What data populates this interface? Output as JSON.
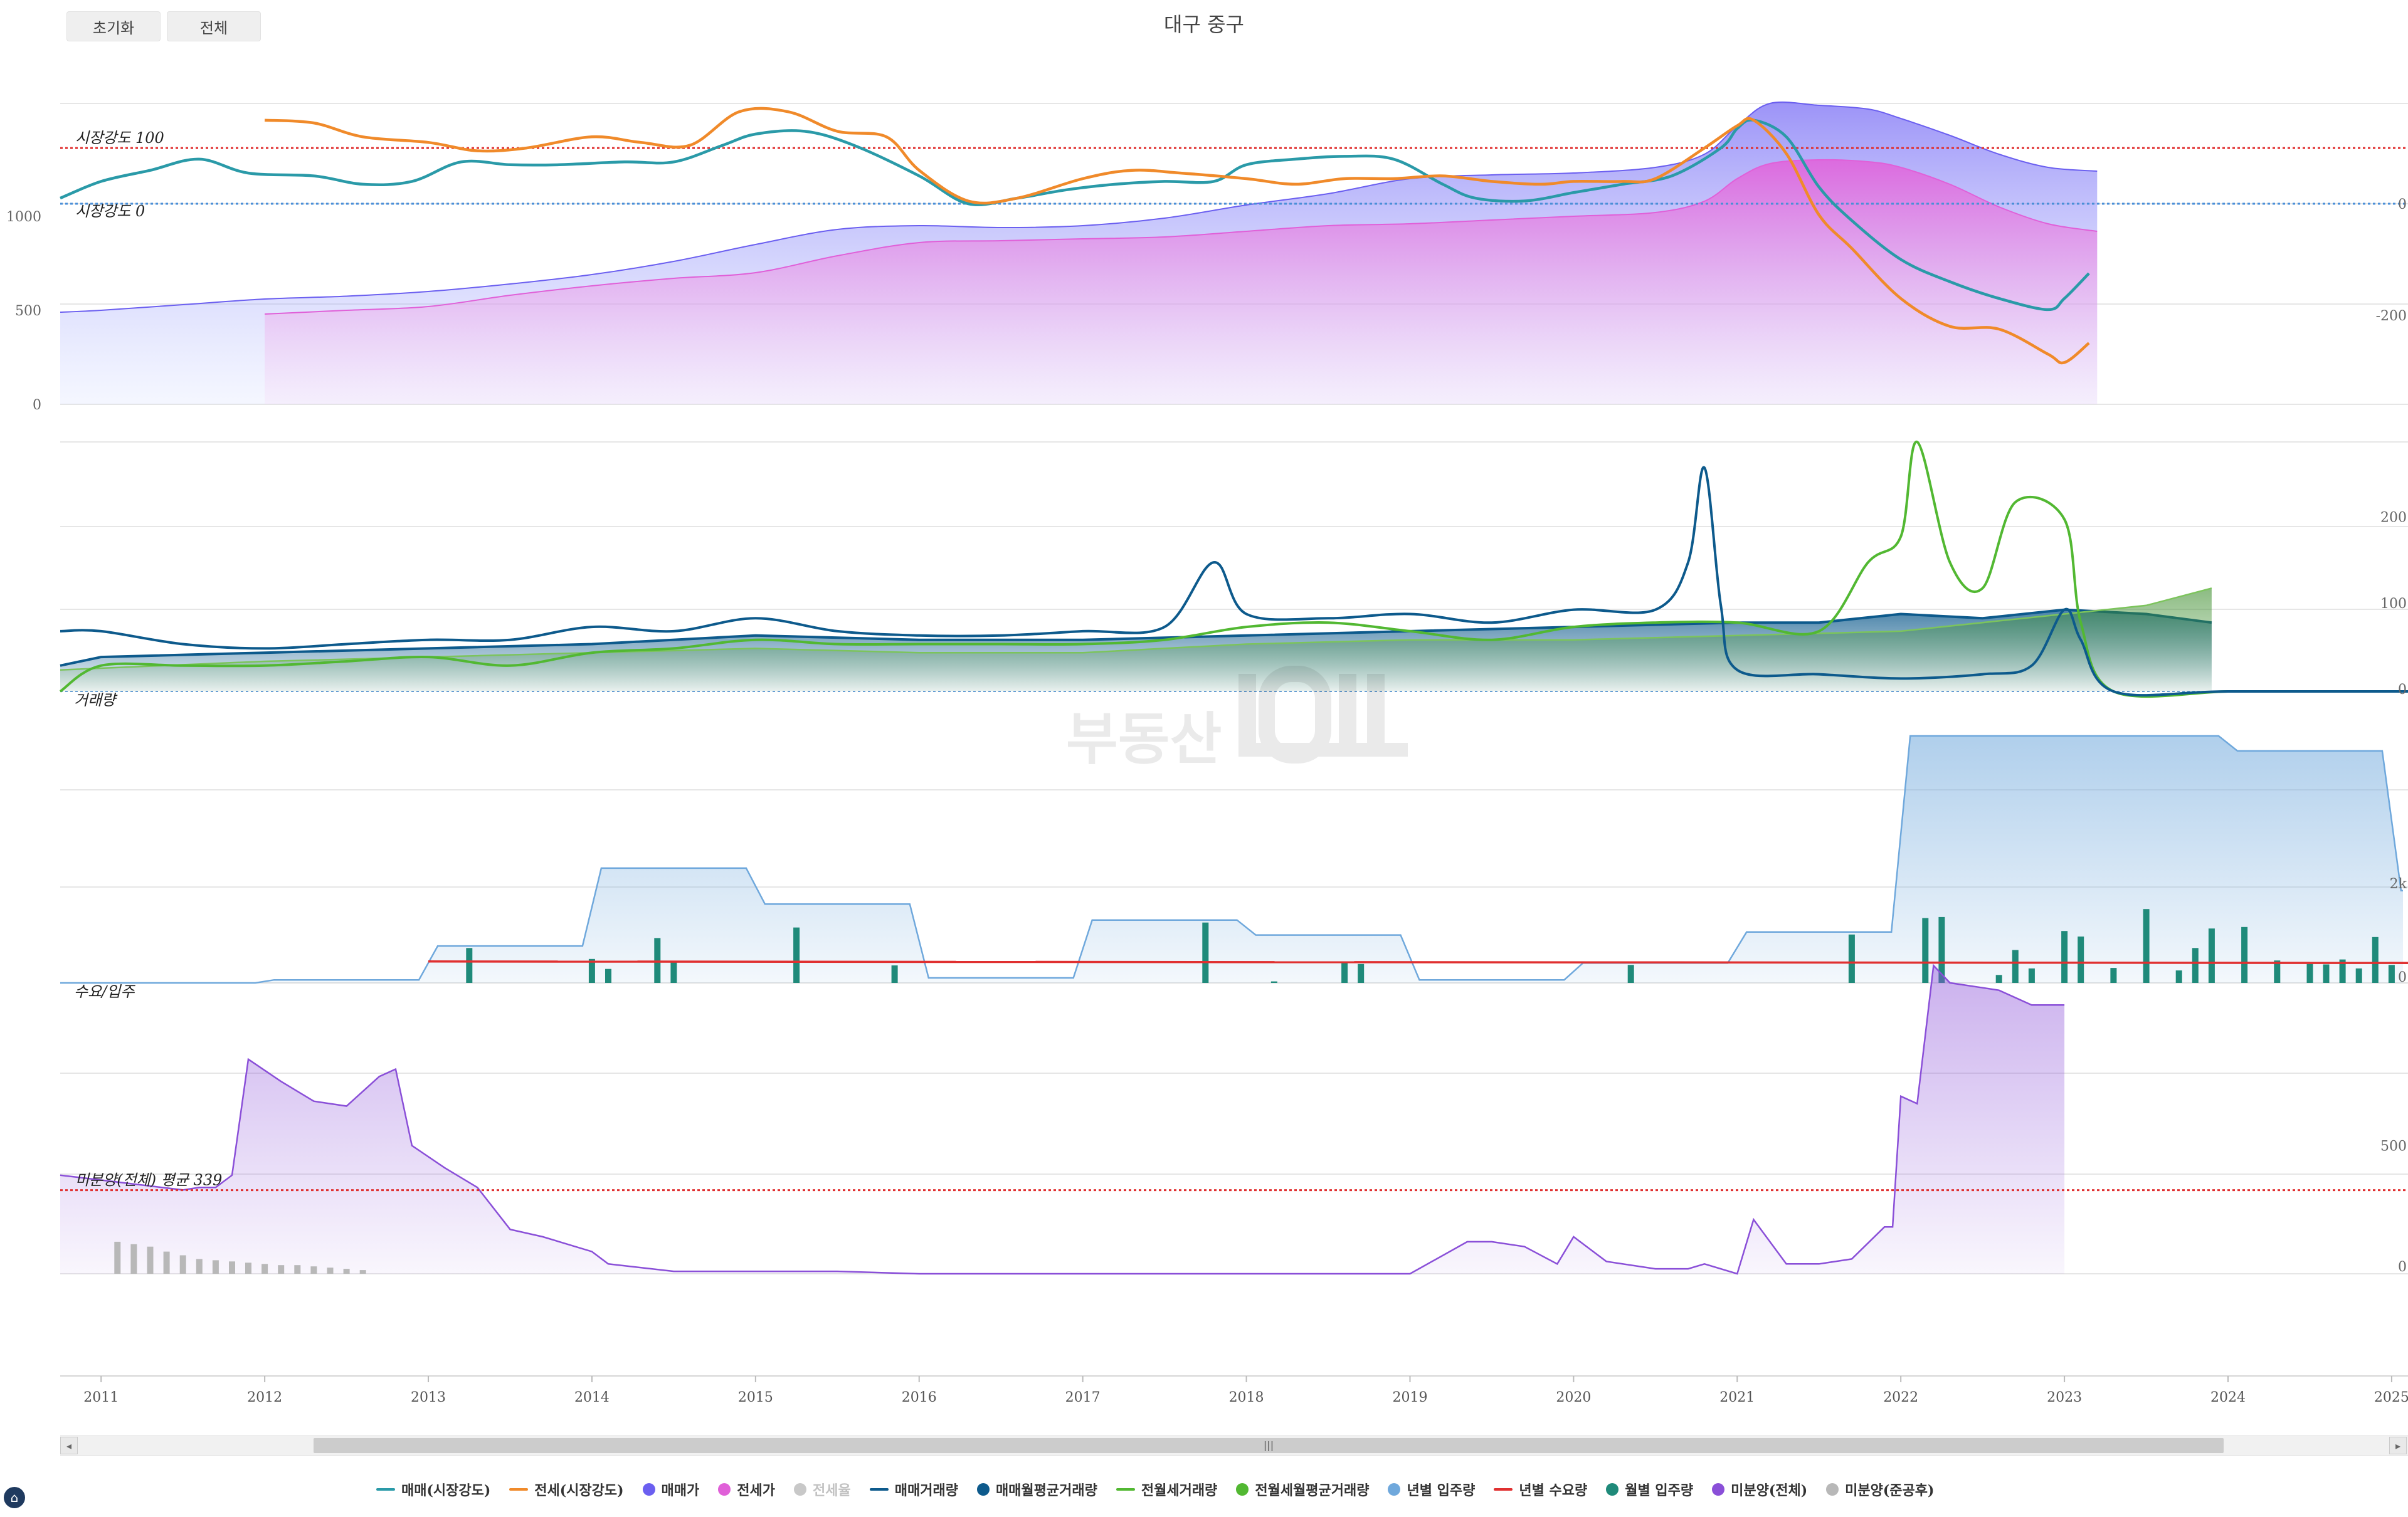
{
  "buttons": {
    "reset": "초기화",
    "all": "전체"
  },
  "title": "대구 중구",
  "x_axis": {
    "ticks": [
      "2011",
      "2012",
      "2013",
      "2014",
      "2015",
      "2016",
      "2017",
      "2018",
      "2019",
      "2020",
      "2021",
      "2022",
      "2023",
      "2024",
      "2025"
    ]
  },
  "panels": {
    "price": {
      "left_ticks": [
        "1000",
        "500",
        "0"
      ],
      "right_ticks": [
        "0",
        "-200"
      ],
      "ref_lines": [
        {
          "label": "시장강도 100",
          "color": "#e03030"
        },
        {
          "label": "시장강도 0",
          "color": "#4a8fd8"
        }
      ]
    },
    "volume": {
      "label": "거래량",
      "right_ticks": [
        "200",
        "100",
        "0"
      ]
    },
    "supply": {
      "label": "수요/입주",
      "right_ticks": [
        "2k",
        "0"
      ]
    },
    "unsold": {
      "right_ticks": [
        "500",
        "0"
      ],
      "ref_label": "미분양(전체) 평균 339"
    }
  },
  "colors": {
    "sale_strength": "#2a9aa8",
    "jeonse_strength": "#f08a2a",
    "sale_price": "#6b5ff0",
    "jeonse_price": "#e060d8",
    "sale_volume": "#0d5a8c",
    "sale_avg_volume": "#0d5a8c",
    "jeonse_volume": "#52b832",
    "jeonse_avg_volume": "#3e8e2e",
    "yearly_supply": "#6fa8dc",
    "yearly_demand": "#e03030",
    "monthly_supply": "#1f8a7a",
    "unsold_total": "#8a4fd8",
    "unsold_completed": "#b8b8b8"
  },
  "legend": [
    {
      "label": "매매(시장강도)",
      "icon": "line",
      "color": "#2a9aa8",
      "off": false
    },
    {
      "label": "전세(시장강도)",
      "icon": "line",
      "color": "#f08a2a",
      "off": false
    },
    {
      "label": "매매가",
      "icon": "dot",
      "color": "#6b5ff0",
      "off": false
    },
    {
      "label": "전세가",
      "icon": "dot",
      "color": "#e060d8",
      "off": false
    },
    {
      "label": "전세율",
      "icon": "dot",
      "color": "#c8c8c8",
      "off": true
    },
    {
      "label": "매매거래량",
      "icon": "line",
      "color": "#0d5a8c",
      "off": false
    },
    {
      "label": "매매월평균거래량",
      "icon": "dot",
      "color": "#0d5a8c",
      "off": false
    },
    {
      "label": "전월세거래량",
      "icon": "line",
      "color": "#52b832",
      "off": false
    },
    {
      "label": "전월세월평균거래량",
      "icon": "dot",
      "color": "#52b832",
      "off": false
    },
    {
      "label": "년별 입주량",
      "icon": "dot",
      "color": "#6fa8dc",
      "off": false
    },
    {
      "label": "년별 수요량",
      "icon": "line",
      "color": "#e03030",
      "off": false
    },
    {
      "label": "월별 입주량",
      "icon": "dot",
      "color": "#1f8a7a",
      "off": false
    },
    {
      "label": "미분양(전체)",
      "icon": "dot",
      "color": "#8a4fd8",
      "off": false
    },
    {
      "label": "미분양(준공후)",
      "icon": "dot",
      "color": "#b8b8b8",
      "off": false
    }
  ],
  "chart_data": [
    {
      "type": "area",
      "panel": "price",
      "xlim": [
        2010.75,
        2025.1
      ],
      "ylim_left": [
        0,
        1600
      ],
      "ylim_right": [
        -360,
        180
      ],
      "ref_lines_right": [
        100,
        0
      ],
      "series": [
        {
          "name": "매매가",
          "axis": "left",
          "x": [
            2010.75,
            2011.0,
            2011.5,
            2012.0,
            2012.5,
            2013.0,
            2013.5,
            2014.0,
            2014.5,
            2015.0,
            2015.5,
            2016.0,
            2016.5,
            2017.0,
            2017.5,
            2018.0,
            2018.5,
            2019.0,
            2019.5,
            2020.0,
            2020.5,
            2020.8,
            2021.0,
            2021.2,
            2021.5,
            2021.8,
            2022.0,
            2022.3,
            2022.6,
            2022.9,
            2023.2
          ],
          "y": [
            490,
            500,
            530,
            560,
            575,
            600,
            640,
            690,
            760,
            850,
            930,
            950,
            940,
            950,
            990,
            1060,
            1120,
            1200,
            1220,
            1230,
            1260,
            1330,
            1480,
            1600,
            1590,
            1570,
            1520,
            1430,
            1330,
            1260,
            1240
          ]
        },
        {
          "name": "전세가",
          "axis": "left",
          "x": [
            2012.0,
            2012.5,
            2013.0,
            2013.5,
            2014.0,
            2014.5,
            2015.0,
            2015.5,
            2016.0,
            2016.5,
            2017.0,
            2017.5,
            2018.0,
            2018.5,
            2019.0,
            2019.5,
            2020.0,
            2020.5,
            2020.8,
            2021.0,
            2021.2,
            2021.5,
            2021.8,
            2022.0,
            2022.3,
            2022.6,
            2022.9,
            2023.2
          ],
          "y": [
            480,
            500,
            520,
            580,
            630,
            670,
            700,
            790,
            860,
            870,
            880,
            890,
            920,
            950,
            960,
            980,
            1000,
            1020,
            1080,
            1200,
            1280,
            1300,
            1290,
            1260,
            1170,
            1050,
            960,
            920
          ]
        },
        {
          "name": "매매(시장강도)",
          "axis": "right",
          "x": [
            2010.75,
            2011.0,
            2011.3,
            2011.6,
            2011.9,
            2012.3,
            2012.6,
            2012.9,
            2013.2,
            2013.5,
            2013.8,
            2014.2,
            2014.5,
            2014.8,
            2015.0,
            2015.3,
            2015.6,
            2016.0,
            2016.3,
            2016.6,
            2016.9,
            2017.2,
            2017.5,
            2017.8,
            2018.0,
            2018.3,
            2018.6,
            2018.9,
            2019.2,
            2019.4,
            2019.7,
            2020.0,
            2020.3,
            2020.6,
            2020.9,
            2021.0,
            2021.1,
            2021.3,
            2021.5,
            2021.7,
            2022.0,
            2022.3,
            2022.6,
            2022.9,
            2023.0,
            2023.15
          ],
          "y": [
            10,
            40,
            60,
            80,
            55,
            50,
            35,
            40,
            75,
            70,
            70,
            75,
            75,
            105,
            125,
            130,
            105,
            50,
            0,
            10,
            25,
            35,
            40,
            40,
            70,
            80,
            85,
            80,
            35,
            10,
            5,
            20,
            35,
            50,
            100,
            135,
            150,
            120,
            30,
            -30,
            -100,
            -140,
            -170,
            -190,
            -170,
            -125
          ]
        },
        {
          "name": "전세(시장강도)",
          "axis": "right",
          "x": [
            2012.0,
            2012.3,
            2012.6,
            2013.0,
            2013.3,
            2013.6,
            2014.0,
            2014.3,
            2014.6,
            2014.9,
            2015.2,
            2015.5,
            2015.8,
            2016.0,
            2016.3,
            2016.6,
            2017.0,
            2017.3,
            2017.6,
            2018.0,
            2018.3,
            2018.6,
            2018.9,
            2019.2,
            2019.5,
            2019.8,
            2020.0,
            2020.3,
            2020.5,
            2020.8,
            2021.0,
            2021.1,
            2021.3,
            2021.5,
            2021.7,
            2022.0,
            2022.3,
            2022.6,
            2022.9,
            2023.0,
            2023.15
          ],
          "y": [
            150,
            145,
            120,
            110,
            95,
            100,
            120,
            110,
            105,
            165,
            165,
            130,
            120,
            60,
            5,
            10,
            45,
            60,
            55,
            45,
            35,
            45,
            45,
            50,
            40,
            35,
            40,
            40,
            45,
            100,
            140,
            150,
            90,
            -20,
            -80,
            -170,
            -220,
            -225,
            -270,
            -285,
            -250
          ]
        }
      ]
    },
    {
      "type": "line",
      "panel": "volume",
      "xlim": [
        2010.75,
        2025.1
      ],
      "ylim": [
        0,
        290
      ],
      "series": [
        {
          "name": "매매거래량",
          "x": [
            2010.75,
            2011.0,
            2011.5,
            2012.0,
            2012.5,
            2013.0,
            2013.5,
            2014.0,
            2014.5,
            2015.0,
            2015.5,
            2016.0,
            2016.5,
            2017.0,
            2017.5,
            2017.8,
            2018.0,
            2018.5,
            2019.0,
            2019.5,
            2020.0,
            2020.5,
            2020.7,
            2020.8,
            2020.9,
            2021.0,
            2021.5,
            2022.0,
            2022.5,
            2022.8,
            2023.0,
            2023.1,
            2023.3,
            2024.0,
            2025.1
          ],
          "y": [
            70,
            70,
            55,
            50,
            55,
            60,
            60,
            75,
            70,
            85,
            70,
            65,
            65,
            70,
            75,
            150,
            90,
            85,
            90,
            80,
            95,
            95,
            150,
            260,
            100,
            25,
            20,
            15,
            20,
            30,
            95,
            60,
            0,
            0,
            0
          ]
        },
        {
          "name": "매매월평균거래량",
          "x": [
            2010.75,
            2011.0,
            2012.0,
            2013.0,
            2014.0,
            2015.0,
            2016.0,
            2017.0,
            2018.0,
            2019.0,
            2020.0,
            2021.0,
            2021.5,
            2022.0,
            2022.5,
            2023.0,
            2023.5,
            2023.9
          ],
          "y": [
            30,
            40,
            45,
            50,
            55,
            65,
            60,
            60,
            65,
            70,
            75,
            80,
            80,
            90,
            85,
            95,
            90,
            80
          ]
        },
        {
          "name": "전월세거래량",
          "x": [
            2010.75,
            2011.0,
            2011.5,
            2012.0,
            2012.5,
            2013.0,
            2013.5,
            2014.0,
            2014.5,
            2015.0,
            2015.5,
            2016.0,
            2016.5,
            2017.0,
            2017.5,
            2018.0,
            2018.5,
            2019.0,
            2019.5,
            2020.0,
            2020.5,
            2021.0,
            2021.5,
            2021.8,
            2022.0,
            2022.1,
            2022.3,
            2022.5,
            2022.7,
            2023.0,
            2023.1,
            2023.3,
            2024.0,
            2024.5,
            2025.1
          ],
          "y": [
            0,
            30,
            30,
            30,
            35,
            40,
            30,
            45,
            50,
            60,
            55,
            55,
            55,
            55,
            60,
            75,
            80,
            70,
            60,
            75,
            80,
            80,
            70,
            150,
            180,
            290,
            150,
            120,
            220,
            200,
            80,
            0,
            0,
            0,
            0
          ]
        },
        {
          "name": "전월세월평균거래량",
          "x": [
            2010.75,
            2012.0,
            2013.0,
            2014.0,
            2015.0,
            2016.0,
            2017.0,
            2018.0,
            2019.0,
            2020.0,
            2021.0,
            2022.0,
            2023.0,
            2023.5,
            2023.9
          ],
          "y": [
            25,
            35,
            40,
            45,
            50,
            45,
            45,
            55,
            60,
            60,
            65,
            70,
            90,
            100,
            120
          ]
        }
      ]
    },
    {
      "type": "bar",
      "panel": "supply",
      "xlim": [
        2010.75,
        2025.1
      ],
      "ylim": [
        0,
        5000
      ],
      "series": [
        {
          "name": "년별 입주량",
          "x": [
            2010.75,
            2012.0,
            2013.0,
            2014.0,
            2015.0,
            2016.0,
            2017.0,
            2018.0,
            2019.0,
            2020.0,
            2021.0,
            2022.0,
            2023.0,
            2024.0,
            2025.0
          ],
          "y": [
            0,
            60,
            740,
            2300,
            1580,
            100,
            1260,
            960,
            60,
            400,
            1020,
            4950,
            4950,
            4650,
            1850
          ]
        },
        {
          "name": "년별 수요량",
          "x": [
            2013.0,
            2025.1
          ],
          "y": [
            430,
            400
          ]
        },
        {
          "name": "월별 입주량",
          "x": [
            2013.25,
            2014.0,
            2014.1,
            2014.4,
            2014.5,
            2015.25,
            2015.85,
            2017.75,
            2018.17,
            2018.6,
            2018.7,
            2020.35,
            2021.7,
            2022.15,
            2022.25,
            2022.6,
            2022.7,
            2022.8,
            2023.0,
            2023.1,
            2023.3,
            2023.5,
            2023.7,
            2023.8,
            2023.9,
            2024.1,
            2024.3,
            2024.5,
            2024.6,
            2024.7,
            2024.8,
            2024.9,
            2025.0
          ],
          "y": [
            700,
            480,
            280,
            900,
            440,
            1110,
            350,
            1210,
            30,
            410,
            380,
            360,
            970,
            1300,
            1320,
            160,
            660,
            290,
            1040,
            930,
            300,
            1480,
            250,
            700,
            1090,
            1120,
            450,
            380,
            370,
            470,
            290,
            920,
            360
          ]
        }
      ]
    },
    {
      "type": "area",
      "panel": "unsold",
      "xlim": [
        2010.75,
        2025.1
      ],
      "ylim": [
        0,
        1200
      ],
      "ref_line": 339,
      "series": [
        {
          "name": "미분양(전체)",
          "x": [
            2010.75,
            2011.0,
            2011.5,
            2011.6,
            2011.7,
            2011.8,
            2011.9,
            2012.1,
            2012.3,
            2012.5,
            2012.7,
            2012.8,
            2012.9,
            2013.1,
            2013.3,
            2013.5,
            2013.7,
            2014.0,
            2014.1,
            2014.5,
            2015.0,
            2015.5,
            2016.0,
            2017.0,
            2018.0,
            2019.0,
            2019.35,
            2019.5,
            2019.7,
            2019.9,
            2020.0,
            2020.2,
            2020.5,
            2020.7,
            2020.8,
            2021.0,
            2021.1,
            2021.3,
            2021.5,
            2021.7,
            2021.9,
            2021.95,
            2022.0,
            2022.1,
            2022.2,
            2022.3,
            2022.5,
            2022.6,
            2022.8,
            2023.0
          ],
          "y": [
            400,
            380,
            340,
            350,
            350,
            400,
            870,
            780,
            700,
            680,
            800,
            830,
            520,
            430,
            350,
            180,
            150,
            90,
            40,
            10,
            10,
            10,
            0,
            0,
            0,
            0,
            130,
            130,
            110,
            40,
            150,
            50,
            20,
            20,
            40,
            0,
            220,
            40,
            40,
            60,
            190,
            190,
            720,
            690,
            1250,
            1180,
            1160,
            1150,
            1090,
            1090
          ]
        },
        {
          "name": "미분양(준공후)",
          "x": [
            2011.1,
            2011.2,
            2011.3,
            2011.4,
            2011.5,
            2011.6,
            2011.7,
            2011.8,
            2011.9,
            2012.0,
            2012.1,
            2012.2,
            2012.3,
            2012.4,
            2012.5,
            2012.6
          ],
          "y": [
            130,
            120,
            110,
            90,
            75,
            60,
            55,
            50,
            45,
            40,
            35,
            35,
            30,
            25,
            20,
            15
          ]
        }
      ]
    }
  ]
}
